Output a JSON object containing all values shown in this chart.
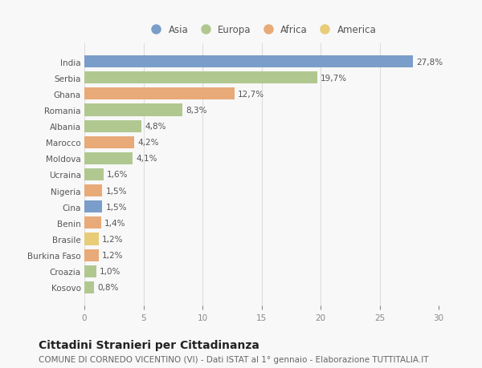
{
  "countries": [
    "India",
    "Serbia",
    "Ghana",
    "Romania",
    "Albania",
    "Marocco",
    "Moldova",
    "Ucraina",
    "Nigeria",
    "Cina",
    "Benin",
    "Brasile",
    "Burkina Faso",
    "Croazia",
    "Kosovo"
  ],
  "values": [
    27.8,
    19.7,
    12.7,
    8.3,
    4.8,
    4.2,
    4.1,
    1.6,
    1.5,
    1.5,
    1.4,
    1.2,
    1.2,
    1.0,
    0.8
  ],
  "labels": [
    "27,8%",
    "19,7%",
    "12,7%",
    "8,3%",
    "4,8%",
    "4,2%",
    "4,1%",
    "1,6%",
    "1,5%",
    "1,5%",
    "1,4%",
    "1,2%",
    "1,2%",
    "1,0%",
    "0,8%"
  ],
  "continents": [
    "Asia",
    "Europa",
    "Africa",
    "Europa",
    "Europa",
    "Africa",
    "Europa",
    "Europa",
    "Africa",
    "Asia",
    "Africa",
    "America",
    "Africa",
    "Europa",
    "Europa"
  ],
  "continent_colors": {
    "Asia": "#7b9dc9",
    "Europa": "#b0c890",
    "Africa": "#e8aa78",
    "America": "#e8cc78"
  },
  "legend_order": [
    "Asia",
    "Europa",
    "Africa",
    "America"
  ],
  "xlim": [
    0,
    30
  ],
  "xticks": [
    0,
    5,
    10,
    15,
    20,
    25,
    30
  ],
  "title": "Cittadini Stranieri per Cittadinanza",
  "subtitle": "COMUNE DI CORNEDO VICENTINO (VI) - Dati ISTAT al 1° gennaio - Elaborazione TUTTITALIA.IT",
  "background_color": "#f8f8f8",
  "grid_color": "#dddddd",
  "bar_height": 0.75,
  "title_fontsize": 10,
  "subtitle_fontsize": 7.5,
  "label_fontsize": 7.5,
  "tick_fontsize": 7.5,
  "legend_fontsize": 8.5
}
